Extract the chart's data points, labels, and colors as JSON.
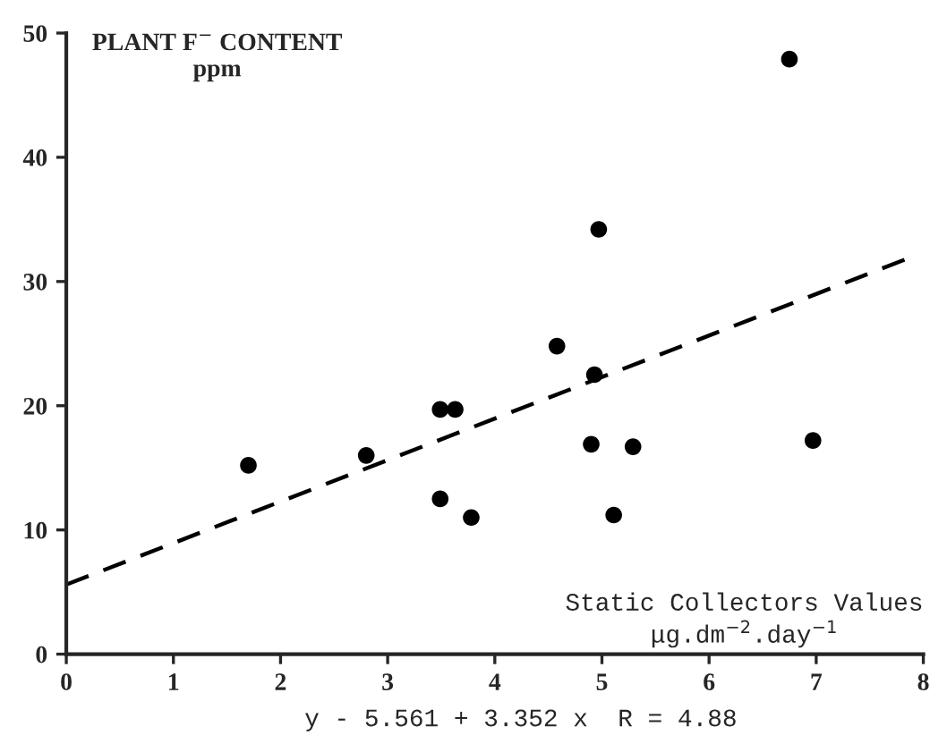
{
  "chart_data": {
    "type": "scatter",
    "ylabel": "PLANT F$^{−}$ CONTENT\nppm",
    "xlabel": "Static Collectors Values\nμg.dm$^{−2}$.day$^{−1}$",
    "annotations": [
      "y - 5.561 + 3.352 x  R = 4.88"
    ],
    "series": [
      {
        "marker": "circle",
        "color": "#000000",
        "x": [
          1.7,
          2.8,
          3.49,
          3.63,
          3.49,
          3.78,
          4.58,
          4.93,
          4.9,
          4.97,
          5.29,
          5.11,
          6.75,
          6.97
        ],
        "values": [
          15.2,
          16.0,
          19.7,
          19.7,
          12.5,
          11.0,
          24.8,
          22.5,
          16.9,
          34.2,
          16.7,
          11.2,
          47.9,
          17.2
        ]
      },
      {
        "type": "line",
        "color": "#000000",
        "line_style": "dashed",
        "x": [
          0,
          7.84
        ],
        "values": [
          5.6,
          31.8
        ]
      }
    ],
    "xlim": [
      0,
      8
    ],
    "xticks": [
      0,
      1,
      2,
      3,
      4,
      5,
      6,
      7,
      8
    ],
    "ylim": [
      0,
      50
    ],
    "yticks": [
      0,
      10,
      20,
      30,
      40,
      50
    ],
    "grid": false,
    "legend": false
  }
}
